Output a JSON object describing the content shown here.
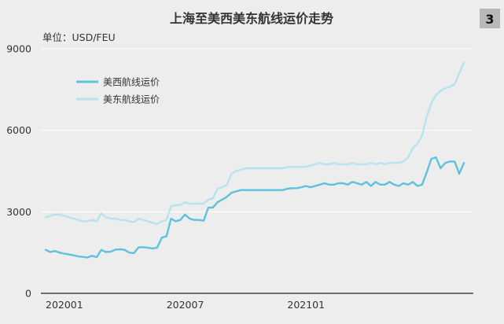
{
  "page_number": "3",
  "chart_data": {
    "type": "line",
    "title": "上海至美西美东航线运价走势",
    "unit_label": "单位：USD/FEU",
    "ylim": [
      0,
      9000
    ],
    "yticks": [
      "0",
      "3000",
      "6000",
      "9000"
    ],
    "x_ticks": [
      {
        "label": "202001",
        "index": 0
      },
      {
        "label": "202007",
        "index": 26
      },
      {
        "label": "202101",
        "index": 52
      }
    ],
    "grid": true,
    "legend_position": "top-left",
    "series": [
      {
        "name": "美西航线运价",
        "color": "#5fc2dd",
        "values": [
          1600,
          1520,
          1560,
          1500,
          1460,
          1430,
          1400,
          1360,
          1340,
          1320,
          1380,
          1330,
          1600,
          1520,
          1530,
          1610,
          1620,
          1600,
          1500,
          1480,
          1690,
          1700,
          1680,
          1650,
          1680,
          2050,
          2100,
          2750,
          2650,
          2700,
          2900,
          2750,
          2700,
          2700,
          2670,
          3150,
          3160,
          3350,
          3450,
          3550,
          3700,
          3750,
          3800,
          3800,
          3800,
          3800,
          3800,
          3800,
          3800,
          3800,
          3800,
          3800,
          3850,
          3870,
          3870,
          3900,
          3950,
          3900,
          3950,
          4000,
          4050,
          4000,
          4000,
          4050,
          4050,
          4000,
          4100,
          4050,
          4000,
          4100,
          3950,
          4100,
          4000,
          4000,
          4100,
          4000,
          3950,
          4050,
          4000,
          4100,
          3950,
          4000,
          4450,
          4950,
          5000,
          4600,
          4800,
          4850,
          4850,
          4400,
          4800
        ]
      },
      {
        "name": "美东航线运价",
        "color": "#b7e2f0",
        "values": [
          2800,
          2850,
          2900,
          2900,
          2850,
          2800,
          2750,
          2700,
          2650,
          2650,
          2700,
          2650,
          2950,
          2800,
          2750,
          2750,
          2700,
          2700,
          2650,
          2620,
          2750,
          2700,
          2650,
          2600,
          2550,
          2650,
          2700,
          3200,
          3250,
          3250,
          3350,
          3300,
          3300,
          3300,
          3300,
          3450,
          3500,
          3850,
          3900,
          4000,
          4400,
          4500,
          4550,
          4600,
          4600,
          4600,
          4600,
          4600,
          4600,
          4600,
          4600,
          4600,
          4650,
          4650,
          4650,
          4650,
          4650,
          4700,
          4750,
          4800,
          4750,
          4750,
          4800,
          4750,
          4750,
          4750,
          4800,
          4750,
          4750,
          4750,
          4800,
          4750,
          4800,
          4750,
          4800,
          4800,
          4800,
          4850,
          5000,
          5350,
          5500,
          5800,
          6500,
          7000,
          7300,
          7450,
          7550,
          7600,
          7700,
          8100,
          8500
        ]
      }
    ]
  }
}
